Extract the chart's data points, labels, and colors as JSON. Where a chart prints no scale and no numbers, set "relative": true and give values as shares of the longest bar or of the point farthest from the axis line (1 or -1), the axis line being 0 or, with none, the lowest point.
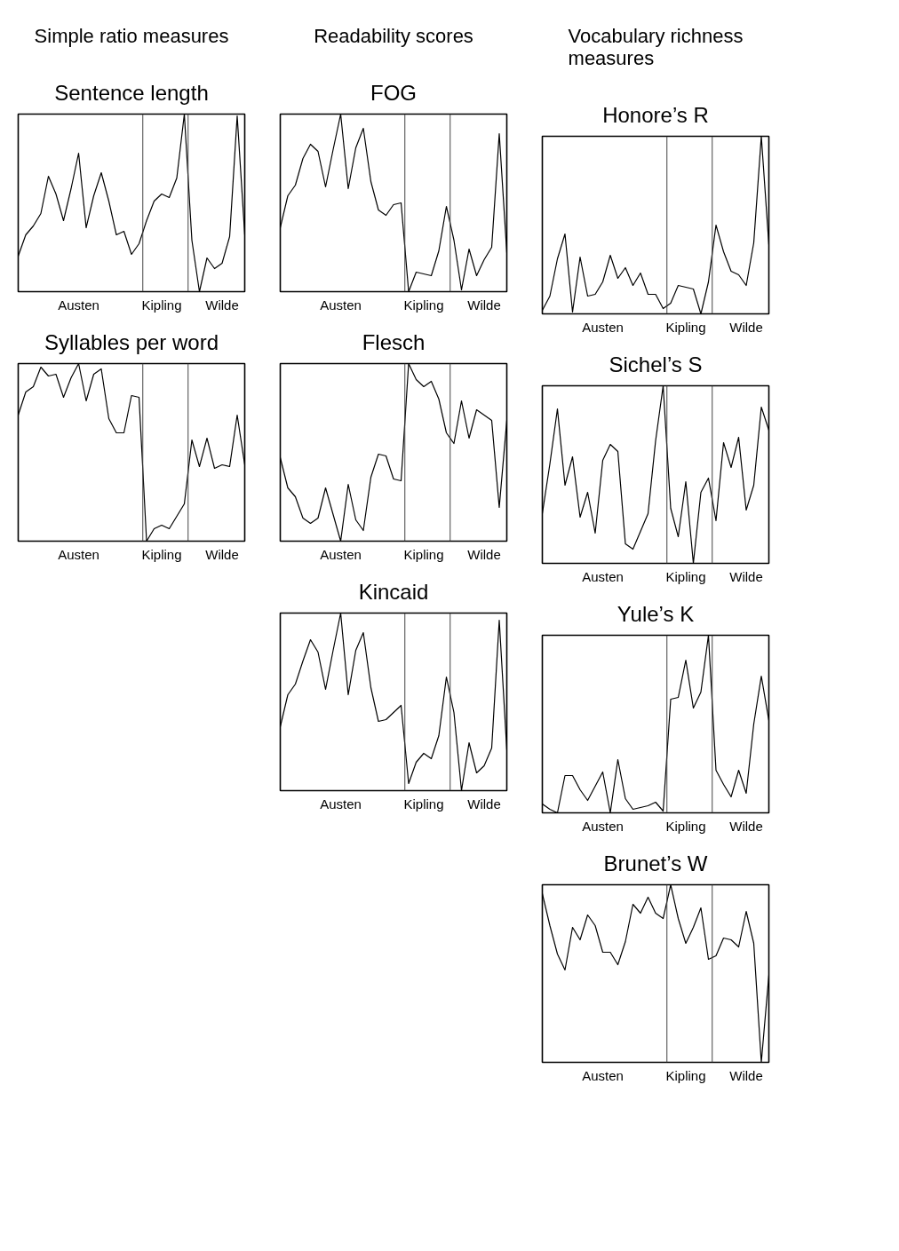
{
  "chart_data": [
    {
      "type": "line",
      "title": "Sentence length",
      "annotations": [
        "Simple ratio measures"
      ],
      "relative": true,
      "categories": [
        null,
        null,
        null,
        null,
        null,
        null,
        null,
        null,
        "Austen",
        null,
        null,
        null,
        null,
        null,
        null,
        null,
        null,
        null,
        null,
        "Kipling",
        null,
        null,
        null,
        null,
        null,
        null,
        null,
        "Wilde",
        null,
        null,
        null
      ],
      "series": [
        {
          "color": "#000000",
          "values": [
            0.2,
            0.32,
            0.37,
            0.44,
            0.65,
            0.55,
            0.4,
            0.58,
            0.78,
            0.36,
            0.54,
            0.67,
            0.51,
            0.32,
            0.34,
            0.21,
            0.27,
            0.4,
            0.51,
            0.55,
            0.53,
            0.64,
            1.0,
            0.29,
            0.0,
            0.19,
            0.13,
            0.16,
            0.31,
            0.99,
            0.32
          ]
        }
      ]
    },
    {
      "type": "line",
      "title": "FOG",
      "annotations": [
        "Readability scores"
      ],
      "relative": true,
      "categories": [
        null,
        null,
        null,
        null,
        null,
        null,
        null,
        null,
        "Austen",
        null,
        null,
        null,
        null,
        null,
        null,
        null,
        null,
        null,
        null,
        "Kipling",
        null,
        null,
        null,
        null,
        null,
        null,
        null,
        "Wilde",
        null,
        null,
        null
      ],
      "series": [
        {
          "color": "#000000",
          "values": [
            0.36,
            0.54,
            0.6,
            0.75,
            0.83,
            0.79,
            0.59,
            0.8,
            1.0,
            0.58,
            0.81,
            0.92,
            0.62,
            0.46,
            0.43,
            0.49,
            0.5,
            0.0,
            0.11,
            0.1,
            0.09,
            0.23,
            0.48,
            0.29,
            0.01,
            0.24,
            0.09,
            0.18,
            0.25,
            0.89,
            0.22
          ]
        }
      ]
    },
    {
      "type": "line",
      "title": "Honore’s R",
      "annotations": [
        "Vocabulary richness measures"
      ],
      "relative": true,
      "categories": [
        null,
        null,
        null,
        null,
        null,
        null,
        null,
        null,
        "Austen",
        null,
        null,
        null,
        null,
        null,
        null,
        null,
        null,
        null,
        null,
        "Kipling",
        null,
        null,
        null,
        null,
        null,
        null,
        null,
        "Wilde",
        null,
        null,
        null
      ],
      "series": [
        {
          "color": "#000000",
          "values": [
            0.02,
            0.1,
            0.31,
            0.45,
            0.01,
            0.32,
            0.1,
            0.11,
            0.18,
            0.33,
            0.2,
            0.26,
            0.16,
            0.23,
            0.11,
            0.11,
            0.03,
            0.06,
            0.16,
            0.15,
            0.14,
            0.0,
            0.18,
            0.5,
            0.35,
            0.24,
            0.22,
            0.16,
            0.4,
            1.0,
            0.39
          ]
        }
      ]
    },
    {
      "type": "line",
      "title": "Syllables per word",
      "relative": true,
      "categories": [
        null,
        null,
        null,
        null,
        null,
        null,
        null,
        null,
        "Austen",
        null,
        null,
        null,
        null,
        null,
        null,
        null,
        null,
        null,
        null,
        "Kipling",
        null,
        null,
        null,
        null,
        null,
        null,
        null,
        "Wilde",
        null,
        null,
        null
      ],
      "series": [
        {
          "color": "#000000",
          "values": [
            0.71,
            0.84,
            0.87,
            0.98,
            0.93,
            0.94,
            0.81,
            0.92,
            1.0,
            0.79,
            0.94,
            0.97,
            0.69,
            0.61,
            0.61,
            0.82,
            0.81,
            0.0,
            0.07,
            0.09,
            0.07,
            0.14,
            0.21,
            0.57,
            0.42,
            0.58,
            0.41,
            0.43,
            0.42,
            0.71,
            0.43
          ]
        }
      ]
    },
    {
      "type": "line",
      "title": "Flesch",
      "relative": true,
      "categories": [
        null,
        null,
        null,
        null,
        null,
        null,
        null,
        null,
        "Austen",
        null,
        null,
        null,
        null,
        null,
        null,
        null,
        null,
        null,
        null,
        "Kipling",
        null,
        null,
        null,
        null,
        null,
        null,
        null,
        "Wilde",
        null,
        null,
        null
      ],
      "series": [
        {
          "color": "#000000",
          "values": [
            0.47,
            0.3,
            0.25,
            0.13,
            0.1,
            0.13,
            0.3,
            0.15,
            0.0,
            0.32,
            0.12,
            0.06,
            0.36,
            0.49,
            0.48,
            0.35,
            0.34,
            1.0,
            0.91,
            0.87,
            0.9,
            0.8,
            0.61,
            0.55,
            0.79,
            0.58,
            0.74,
            0.71,
            0.68,
            0.19,
            0.68
          ]
        }
      ]
    },
    {
      "type": "line",
      "title": "Sichel’s S",
      "relative": true,
      "categories": [
        null,
        null,
        null,
        null,
        null,
        null,
        null,
        null,
        "Austen",
        null,
        null,
        null,
        null,
        null,
        null,
        null,
        null,
        null,
        null,
        "Kipling",
        null,
        null,
        null,
        null,
        null,
        null,
        null,
        "Wilde",
        null,
        null,
        null
      ],
      "series": [
        {
          "color": "#000000",
          "values": [
            0.28,
            0.56,
            0.87,
            0.44,
            0.6,
            0.26,
            0.4,
            0.17,
            0.58,
            0.67,
            0.63,
            0.11,
            0.08,
            0.18,
            0.28,
            0.69,
            1.0,
            0.31,
            0.15,
            0.46,
            0.0,
            0.4,
            0.48,
            0.24,
            0.68,
            0.54,
            0.71,
            0.3,
            0.44,
            0.88,
            0.75
          ]
        }
      ]
    },
    {
      "type": "line",
      "title": "Kincaid",
      "relative": true,
      "categories": [
        null,
        null,
        null,
        null,
        null,
        null,
        null,
        null,
        "Austen",
        null,
        null,
        null,
        null,
        null,
        null,
        null,
        null,
        null,
        null,
        "Kipling",
        null,
        null,
        null,
        null,
        null,
        null,
        null,
        "Wilde",
        null,
        null,
        null
      ],
      "series": [
        {
          "color": "#000000",
          "values": [
            0.36,
            0.54,
            0.6,
            0.73,
            0.85,
            0.78,
            0.57,
            0.79,
            1.0,
            0.54,
            0.79,
            0.89,
            0.58,
            0.39,
            0.4,
            0.44,
            0.48,
            0.04,
            0.16,
            0.21,
            0.18,
            0.31,
            0.64,
            0.44,
            0.0,
            0.27,
            0.1,
            0.14,
            0.24,
            0.96,
            0.23
          ]
        }
      ]
    },
    {
      "type": "line",
      "title": "Yule’s K",
      "relative": true,
      "categories": [
        null,
        null,
        null,
        null,
        null,
        null,
        null,
        null,
        "Austen",
        null,
        null,
        null,
        null,
        null,
        null,
        null,
        null,
        null,
        null,
        "Kipling",
        null,
        null,
        null,
        null,
        null,
        null,
        null,
        "Wilde",
        null,
        null,
        null
      ],
      "series": [
        {
          "color": "#000000",
          "values": [
            0.05,
            0.02,
            0.0,
            0.21,
            0.21,
            0.13,
            0.07,
            0.15,
            0.23,
            0.0,
            0.3,
            0.08,
            0.02,
            0.03,
            0.04,
            0.06,
            0.01,
            0.64,
            0.65,
            0.86,
            0.59,
            0.68,
            1.0,
            0.24,
            0.16,
            0.09,
            0.24,
            0.11,
            0.5,
            0.77,
            0.52
          ]
        }
      ]
    },
    {
      "type": "line",
      "title": "Brunet’s W",
      "relative": true,
      "categories": [
        null,
        null,
        null,
        null,
        null,
        null,
        null,
        null,
        "Austen",
        null,
        null,
        null,
        null,
        null,
        null,
        null,
        null,
        null,
        null,
        "Kipling",
        null,
        null,
        null,
        null,
        null,
        null,
        null,
        "Wilde",
        null,
        null,
        null
      ],
      "series": [
        {
          "color": "#000000",
          "values": [
            0.95,
            0.77,
            0.61,
            0.52,
            0.76,
            0.69,
            0.83,
            0.77,
            0.62,
            0.62,
            0.55,
            0.68,
            0.89,
            0.84,
            0.93,
            0.84,
            0.81,
            1.0,
            0.81,
            0.67,
            0.76,
            0.87,
            0.58,
            0.6,
            0.7,
            0.69,
            0.65,
            0.85,
            0.67,
            0.0,
            0.49
          ]
        }
      ]
    }
  ]
}
